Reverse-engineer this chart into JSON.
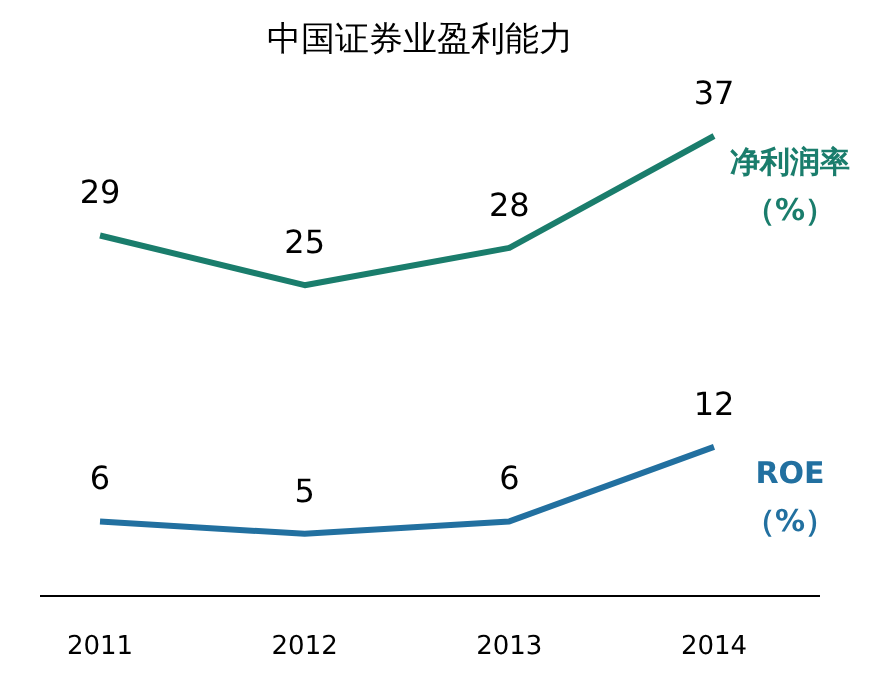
{
  "chart_data": {
    "type": "line",
    "title": "中国证券业盈利能力",
    "categories": [
      "2011",
      "2012",
      "2013",
      "2014"
    ],
    "series": [
      {
        "name": "净利润率（%）",
        "color": "#1a7d6c",
        "values": [
          29,
          25,
          28,
          37
        ]
      },
      {
        "name": "ROE（%）",
        "color": "#2270a0",
        "values": [
          6,
          5,
          6,
          12
        ]
      }
    ],
    "tick_labels": "x",
    "data_labels": true,
    "marker": "none",
    "line_style": "solid"
  }
}
